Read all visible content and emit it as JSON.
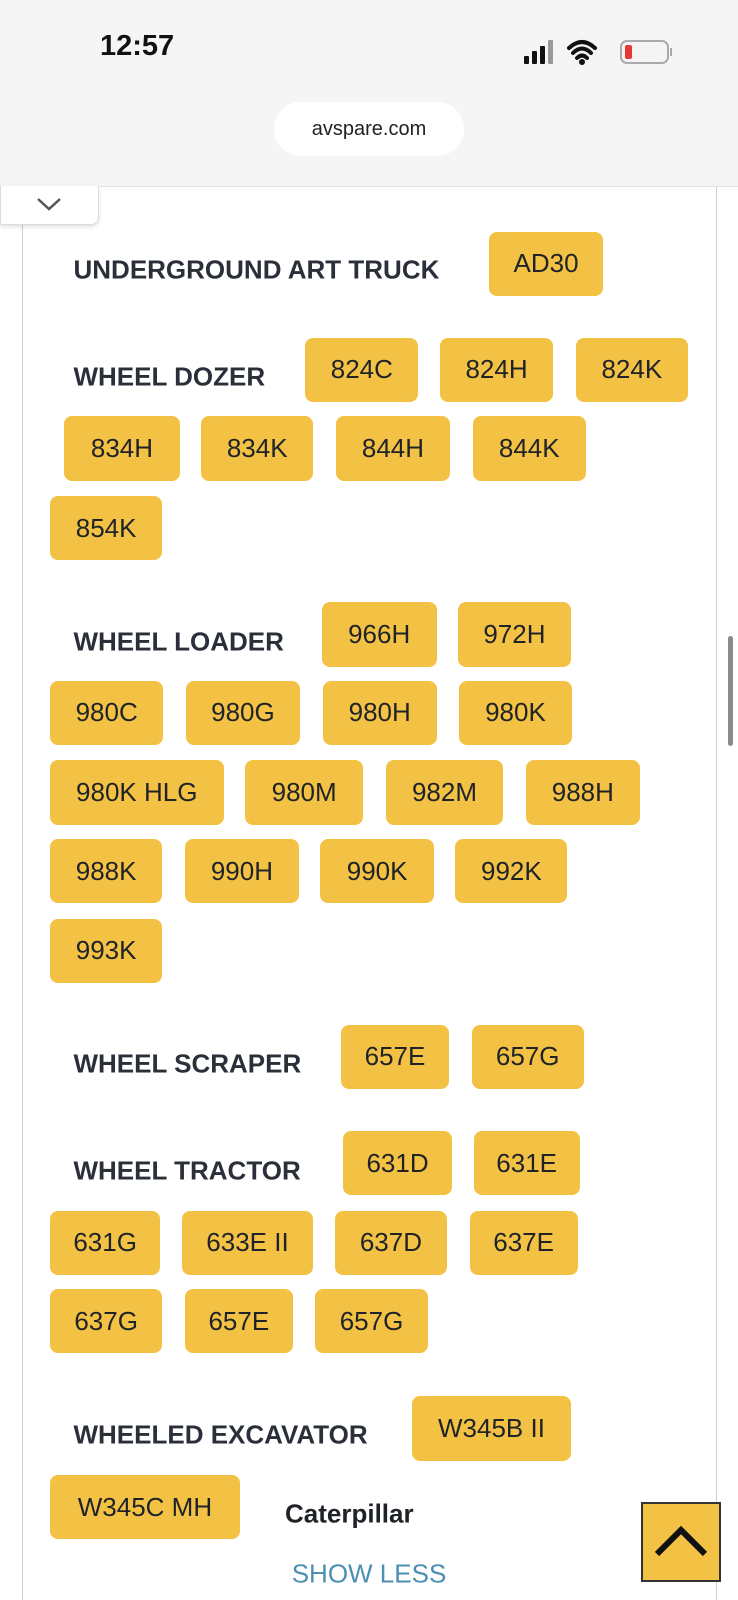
{
  "status_bar": {
    "time": "12:57"
  },
  "browser": {
    "url": "avspare.com"
  },
  "sections": [
    {
      "title": "UNDERGROUND ART TRUCK",
      "models": [
        "AD30"
      ]
    },
    {
      "title": "WHEEL DOZER",
      "models": [
        "824C",
        "824H",
        "824K",
        "834H",
        "834K",
        "844H",
        "844K",
        "854K"
      ]
    },
    {
      "title": "WHEEL LOADER",
      "models": [
        "966H",
        "972H",
        "980C",
        "980G",
        "980H",
        "980K",
        "980K HLG",
        "980M",
        "982M",
        "988H",
        "988K",
        "990H",
        "990K",
        "992K",
        "993K"
      ]
    },
    {
      "title": "WHEEL SCRAPER",
      "models": [
        "657E",
        "657G"
      ]
    },
    {
      "title": "WHEEL TRACTOR",
      "models": [
        "631D",
        "631E",
        "631G",
        "633E II",
        "637D",
        "637E",
        "637G",
        "657E",
        "657G"
      ]
    },
    {
      "title": "WHEELED EXCAVATOR",
      "models": [
        "W345B II",
        "W345C MH"
      ]
    }
  ],
  "brand": "Caterpillar",
  "show_less": "SHOW LESS"
}
